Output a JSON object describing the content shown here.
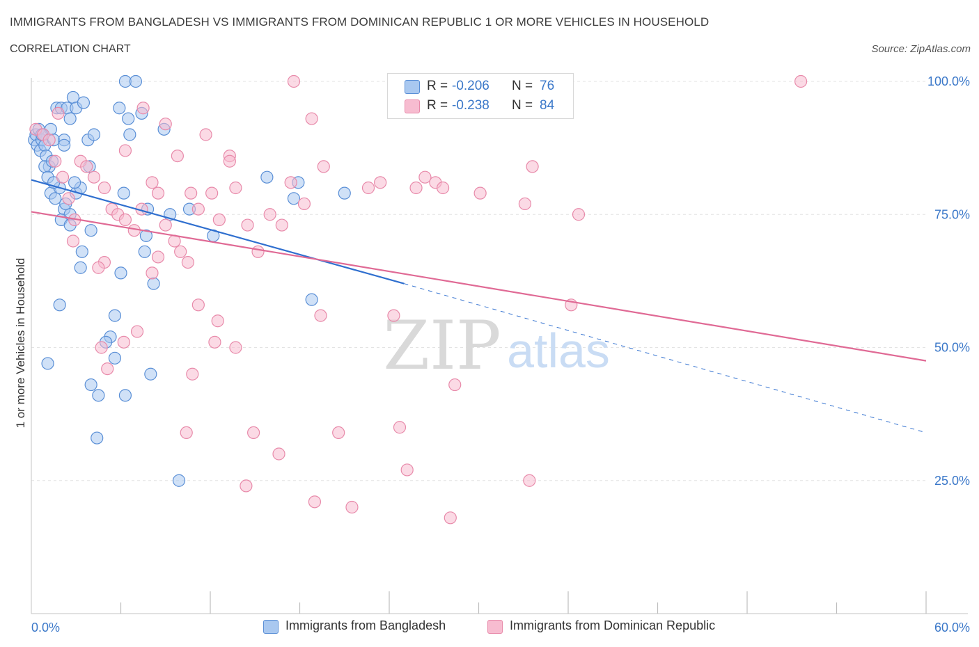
{
  "title": "IMMIGRANTS FROM BANGLADESH VS IMMIGRANTS FROM DOMINICAN REPUBLIC 1 OR MORE VEHICLES IN HOUSEHOLD",
  "subtitle": "CORRELATION CHART",
  "source": "Source: ZipAtlas.com",
  "watermark": {
    "zip": "ZIP",
    "atlas": "atlas"
  },
  "stats_legend": {
    "r_label": "R =",
    "n_label": "N =",
    "rows": [
      {
        "r": "-0.206",
        "n": "76"
      },
      {
        "r": "-0.238",
        "n": "84"
      }
    ]
  },
  "colors": {
    "bangladesh_fill": "#a9c8f0",
    "bangladesh_stroke": "#5a8fd6",
    "bangladesh_line": "#2f6fcf",
    "dominican_fill": "#f7bcd0",
    "dominican_stroke": "#e88aaa",
    "dominican_line": "#e06a95",
    "axis_text": "#3b78c9",
    "grid": "#e3e3e3"
  },
  "chart_data": {
    "type": "scatter",
    "ylabel": "1 or more Vehicles in Household",
    "xlim": [
      0,
      60
    ],
    "ylim": [
      0,
      100
    ],
    "x_tick_labels": [
      "0.0%",
      "60.0%"
    ],
    "y_ticks": [
      {
        "value": 100,
        "label": "100.0%"
      },
      {
        "value": 75,
        "label": "75.0%"
      },
      {
        "value": 50,
        "label": "50.0%"
      },
      {
        "value": 25,
        "label": "25.0%"
      }
    ],
    "grid": true,
    "series": [
      {
        "name": "Immigrants from Bangladesh",
        "color": "#5a8fd6",
        "trend": {
          "x0": 0,
          "y0": 81.5,
          "x1": 25,
          "y1": 62.0,
          "dashed_to_x": 60,
          "dashed_to_y": 34.0
        },
        "points": [
          [
            0.2,
            89
          ],
          [
            0.3,
            90
          ],
          [
            0.4,
            88
          ],
          [
            0.5,
            91
          ],
          [
            0.6,
            87
          ],
          [
            0.7,
            89
          ],
          [
            0.8,
            90
          ],
          [
            0.9,
            88
          ],
          [
            1.0,
            86
          ],
          [
            1.2,
            84
          ],
          [
            1.3,
            91
          ],
          [
            1.5,
            89
          ],
          [
            1.7,
            95
          ],
          [
            2.0,
            95
          ],
          [
            2.2,
            89
          ],
          [
            2.4,
            95
          ],
          [
            2.6,
            93
          ],
          [
            2.8,
            97
          ],
          [
            3.0,
            95
          ],
          [
            3.5,
            96
          ],
          [
            3.8,
            89
          ],
          [
            4.2,
            90
          ],
          [
            6.3,
            100
          ],
          [
            7.0,
            100
          ],
          [
            5.9,
            95
          ],
          [
            6.6,
            90
          ],
          [
            7.4,
            94
          ],
          [
            8.9,
            91
          ],
          [
            0.9,
            84
          ],
          [
            1.1,
            82
          ],
          [
            1.3,
            79
          ],
          [
            1.6,
            78
          ],
          [
            1.9,
            80
          ],
          [
            2.2,
            76
          ],
          [
            2.6,
            75
          ],
          [
            3.0,
            79
          ],
          [
            3.9,
            84
          ],
          [
            2.0,
            74
          ],
          [
            2.6,
            73
          ],
          [
            3.3,
            80
          ],
          [
            1.5,
            81
          ],
          [
            2.3,
            77
          ],
          [
            2.9,
            81
          ],
          [
            6.2,
            79
          ],
          [
            7.8,
            76
          ],
          [
            9.3,
            75
          ],
          [
            10.6,
            76
          ],
          [
            12.2,
            71
          ],
          [
            7.7,
            71
          ],
          [
            7.6,
            68
          ],
          [
            3.4,
            68
          ],
          [
            3.3,
            65
          ],
          [
            6.0,
            64
          ],
          [
            8.2,
            62
          ],
          [
            1.9,
            58
          ],
          [
            5.6,
            56
          ],
          [
            5.3,
            52
          ],
          [
            5.0,
            51
          ],
          [
            5.6,
            48
          ],
          [
            1.1,
            47
          ],
          [
            8.0,
            45
          ],
          [
            4.0,
            43
          ],
          [
            4.5,
            41
          ],
          [
            6.3,
            41
          ],
          [
            4.4,
            33
          ],
          [
            9.9,
            25
          ],
          [
            15.8,
            82
          ],
          [
            17.6,
            78
          ],
          [
            17.9,
            81
          ],
          [
            21.0,
            79
          ],
          [
            18.8,
            59
          ],
          [
            1.4,
            85
          ],
          [
            2.2,
            88
          ],
          [
            0.7,
            90
          ],
          [
            4.0,
            72
          ],
          [
            6.5,
            93
          ]
        ]
      },
      {
        "name": "Immigrants from Dominican Republic",
        "color": "#e88aaa",
        "trend": {
          "x0": 0,
          "y0": 75.5,
          "x1": 60,
          "y1": 47.5
        },
        "points": [
          [
            0.3,
            91
          ],
          [
            0.8,
            90
          ],
          [
            1.2,
            89
          ],
          [
            1.6,
            85
          ],
          [
            2.1,
            82
          ],
          [
            2.5,
            78
          ],
          [
            2.9,
            74
          ],
          [
            3.3,
            85
          ],
          [
            3.7,
            84
          ],
          [
            4.2,
            82
          ],
          [
            4.9,
            80
          ],
          [
            5.4,
            76
          ],
          [
            5.8,
            75
          ],
          [
            6.3,
            74
          ],
          [
            6.9,
            72
          ],
          [
            7.4,
            76
          ],
          [
            8.1,
            81
          ],
          [
            8.5,
            79
          ],
          [
            9.0,
            73
          ],
          [
            9.6,
            70
          ],
          [
            10.0,
            68
          ],
          [
            10.7,
            79
          ],
          [
            11.2,
            76
          ],
          [
            12.1,
            79
          ],
          [
            12.6,
            74
          ],
          [
            13.3,
            86
          ],
          [
            13.7,
            80
          ],
          [
            14.5,
            73
          ],
          [
            15.2,
            68
          ],
          [
            16.0,
            75
          ],
          [
            16.8,
            73
          ],
          [
            17.4,
            81
          ],
          [
            18.3,
            77
          ],
          [
            19.6,
            84
          ],
          [
            22.6,
            80
          ],
          [
            23.4,
            81
          ],
          [
            25.8,
            80
          ],
          [
            26.4,
            82
          ],
          [
            27.1,
            81
          ],
          [
            27.6,
            80
          ],
          [
            30.1,
            79
          ],
          [
            33.1,
            77
          ],
          [
            33.6,
            84
          ],
          [
            36.7,
            75
          ],
          [
            6.3,
            87
          ],
          [
            7.5,
            95
          ],
          [
            9.0,
            92
          ],
          [
            9.8,
            86
          ],
          [
            11.7,
            90
          ],
          [
            13.3,
            85
          ],
          [
            17.6,
            100
          ],
          [
            18.8,
            93
          ],
          [
            51.6,
            100
          ],
          [
            1.8,
            94
          ],
          [
            4.9,
            66
          ],
          [
            4.5,
            65
          ],
          [
            8.1,
            64
          ],
          [
            10.5,
            66
          ],
          [
            11.2,
            58
          ],
          [
            12.5,
            55
          ],
          [
            12.3,
            51
          ],
          [
            13.7,
            50
          ],
          [
            7.1,
            53
          ],
          [
            6.2,
            51
          ],
          [
            4.7,
            50
          ],
          [
            5.1,
            46
          ],
          [
            10.8,
            45
          ],
          [
            24.3,
            56
          ],
          [
            19.4,
            56
          ],
          [
            28.4,
            43
          ],
          [
            36.2,
            58
          ],
          [
            14.9,
            34
          ],
          [
            10.4,
            34
          ],
          [
            20.6,
            34
          ],
          [
            24.7,
            35
          ],
          [
            16.6,
            30
          ],
          [
            25.2,
            27
          ],
          [
            14.4,
            24
          ],
          [
            19.0,
            21
          ],
          [
            21.5,
            20
          ],
          [
            28.1,
            18
          ],
          [
            33.4,
            25
          ],
          [
            2.8,
            70
          ],
          [
            8.5,
            67
          ]
        ]
      }
    ]
  },
  "bottom_legend": [
    {
      "label": "Immigrants from Bangladesh"
    },
    {
      "label": "Immigrants from Dominican Republic"
    }
  ]
}
